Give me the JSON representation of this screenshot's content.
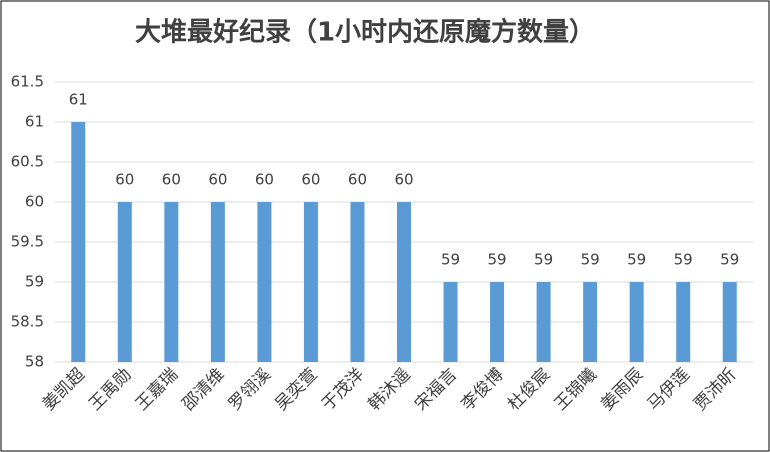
{
  "chart_data": {
    "type": "bar",
    "title": "大堆最好纪录（1小时内还原魔方数量）",
    "categories": [
      "姜凯超",
      "王禹勋",
      "王嘉瑞",
      "邵清维",
      "罗翎溪",
      "吴奕萱",
      "于茂洋",
      "韩沐遥",
      "宋福言",
      "李俊博",
      "杜俊宸",
      "王锦曦",
      "姜雨辰",
      "马伊莲",
      "贾沛昕"
    ],
    "values": [
      61,
      60,
      60,
      60,
      60,
      60,
      60,
      60,
      59,
      59,
      59,
      59,
      59,
      59,
      59
    ],
    "color": "#5b9bd5",
    "ylim": [
      58,
      61.5
    ],
    "yticks": [
      58,
      58.5,
      59,
      59.5,
      60,
      60.5,
      61,
      61.5
    ],
    "grid": true
  }
}
